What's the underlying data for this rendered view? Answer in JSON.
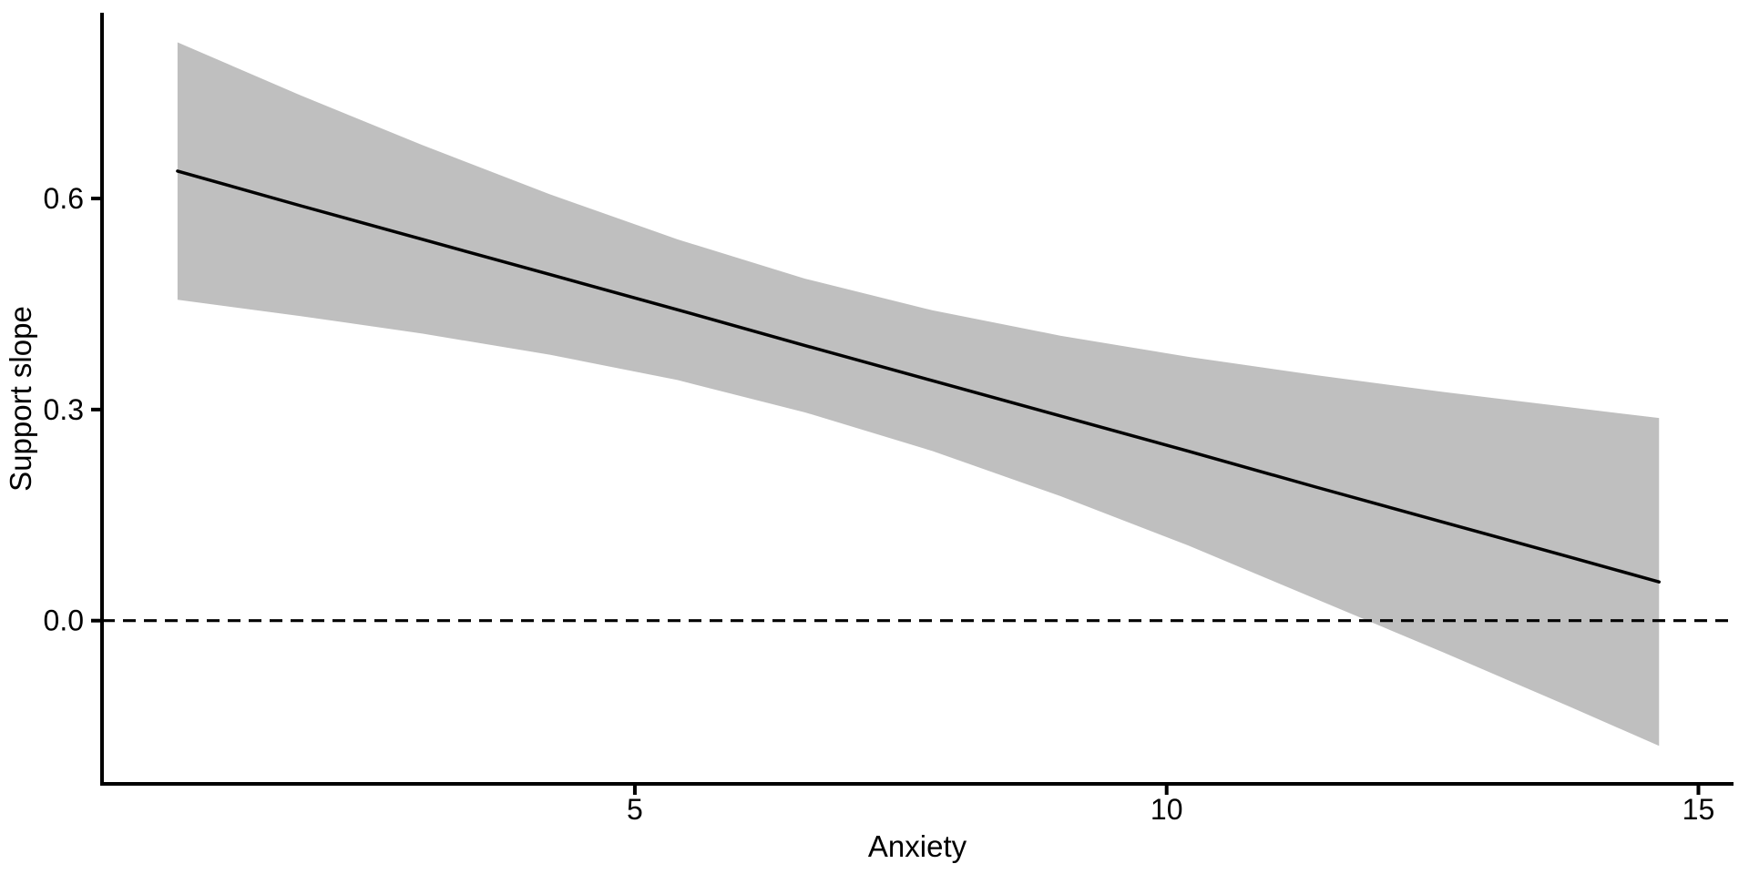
{
  "chart_data": {
    "type": "line",
    "title": "",
    "xlabel": "Anxiety",
    "ylabel": "Support slope",
    "x_ticks": {
      "values": [
        5,
        10,
        15
      ],
      "labels": [
        "5",
        "10",
        "15"
      ]
    },
    "y_ticks": {
      "values": [
        0.0,
        0.3,
        0.6
      ],
      "labels": [
        "0.0",
        "0.3",
        "0.6"
      ]
    },
    "xlim": [
      -0.01,
      15.33
    ],
    "ylim": [
      -0.232,
      0.864
    ],
    "grid": "off",
    "legend": "none",
    "regression": {
      "slope": -0.042,
      "intercept": 0.668,
      "x_start": 0.7,
      "x_end": 14.63
    },
    "reference_line": {
      "y": 0.0,
      "style": "dashed"
    },
    "series": [
      {
        "name": "fitted-line-with-95pct-ci",
        "x": [
          0.7,
          1.85,
          3.0,
          4.2,
          5.4,
          6.6,
          7.8,
          9.0,
          10.2,
          11.4,
          12.6,
          13.8,
          14.63
        ],
        "fit": [
          0.639,
          0.59,
          0.542,
          0.492,
          0.442,
          0.391,
          0.341,
          0.291,
          0.241,
          0.19,
          0.14,
          0.09,
          0.055
        ],
        "lower": [
          0.456,
          0.433,
          0.408,
          0.378,
          0.342,
          0.296,
          0.241,
          0.177,
          0.107,
          0.031,
          -0.045,
          -0.123,
          -0.178
        ],
        "upper": [
          0.822,
          0.747,
          0.676,
          0.606,
          0.542,
          0.486,
          0.441,
          0.405,
          0.375,
          0.349,
          0.325,
          0.303,
          0.288
        ]
      }
    ],
    "colors": {
      "line": "#000000",
      "ribbon": "#bfbfbf",
      "axis": "#000000",
      "text": "#000000",
      "background": "#ffffff"
    }
  }
}
